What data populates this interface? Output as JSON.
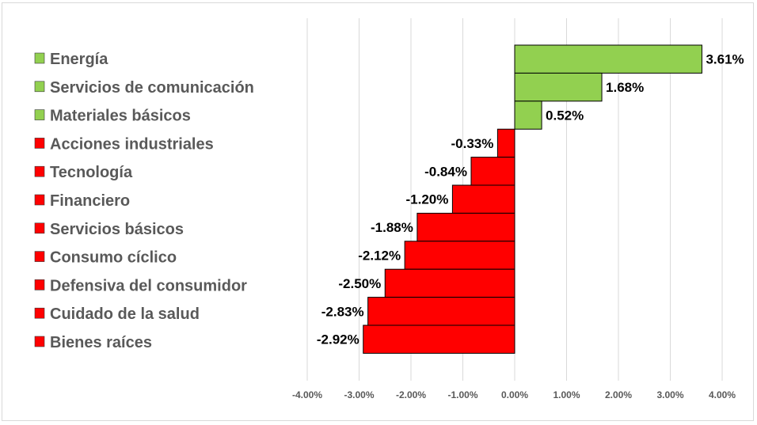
{
  "chart_data": {
    "type": "bar",
    "orientation": "horizontal",
    "title": "",
    "xlabel": "",
    "ylabel": "",
    "xlim": [
      -4,
      4
    ],
    "tick_step": 1,
    "grid": true,
    "legend_position": "left",
    "categories": [
      "Energía",
      "Servicios de comunicación",
      "Materiales básicos",
      "Acciones industriales",
      "Tecnología",
      "Financiero",
      "Servicios básicos",
      "Consumo cíclico",
      "Defensiva del consumidor",
      "Cuidado de la salud",
      "Bienes raíces"
    ],
    "values": [
      3.61,
      1.68,
      0.52,
      -0.33,
      -0.84,
      -1.2,
      -1.88,
      -2.12,
      -2.5,
      -2.83,
      -2.92
    ],
    "data_labels": [
      "3.61%",
      "1.68%",
      "0.52%",
      "-0.33%",
      "-0.84%",
      "-1.20%",
      "-1.88%",
      "-2.12%",
      "-2.50%",
      "-2.83%",
      "-2.92%"
    ],
    "tick_labels": [
      "-4.00%",
      "-3.00%",
      "-2.00%",
      "-1.00%",
      "0.00%",
      "1.00%",
      "2.00%",
      "3.00%",
      "4.00%"
    ],
    "colors": {
      "positive": "#92d050",
      "negative": "#ff0000",
      "bar_border": "#000000",
      "gridline": "#d9d9d9",
      "legend_text": "#595959",
      "tick_text": "#595959",
      "data_label_text": "#000000"
    }
  }
}
